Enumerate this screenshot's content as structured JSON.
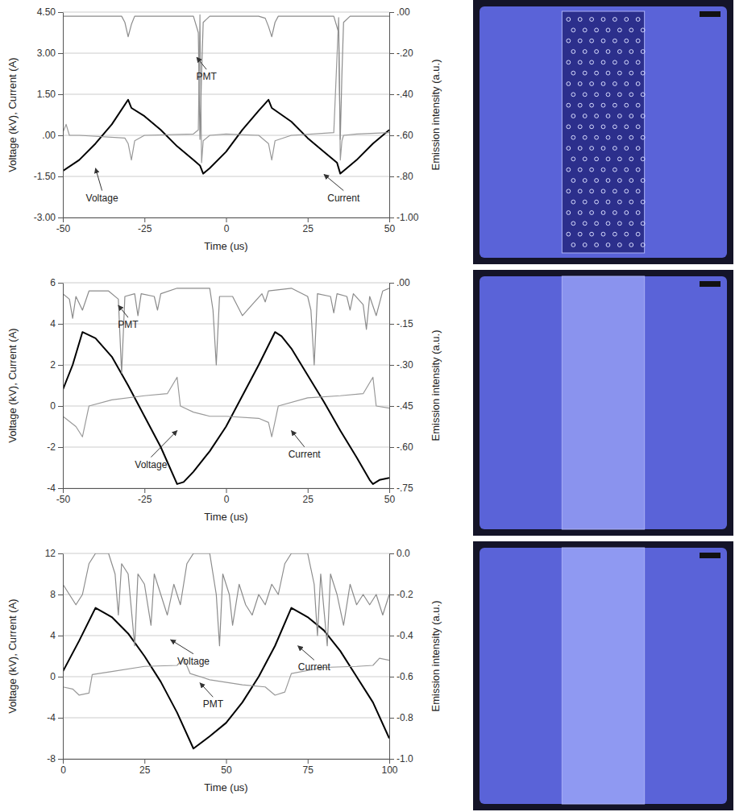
{
  "chart_data": [
    {
      "type": "line",
      "xlabel": "Time (us)",
      "ylabel": "Voltage (kV), Current (A)",
      "y2label": "Emission intensity (a.u.)",
      "xlim": [
        -50,
        50
      ],
      "ylim": [
        -3,
        4.5
      ],
      "y2lim": [
        -1,
        0
      ],
      "xticks": [
        -50,
        -25,
        0,
        25,
        50
      ],
      "yticks": [
        {
          "value": -3,
          "label": "-3.00"
        },
        {
          "value": -1.5,
          "label": "-1.50"
        },
        {
          "value": 0,
          "label": ".00"
        },
        {
          "value": 1.5,
          "label": "1.50"
        },
        {
          "value": 3,
          "label": "3.00"
        },
        {
          "value": 4.5,
          "label": "4.50"
        }
      ],
      "y2ticks": [
        {
          "value": -1,
          "label": "-1.00"
        },
        {
          "value": -0.8,
          "label": "-.80"
        },
        {
          "value": -0.6,
          "label": "-.60"
        },
        {
          "value": -0.4,
          "label": "-.40"
        },
        {
          "value": -0.2,
          "label": "-.20"
        },
        {
          "value": 0,
          "label": ".00"
        }
      ],
      "grid": true,
      "series": [
        {
          "name": "Voltage",
          "color": "#000000",
          "x": [
            -50,
            -45,
            -40,
            -35,
            -30,
            -29,
            -25,
            -20,
            -15,
            -10,
            -8,
            -7,
            -5,
            0,
            5,
            10,
            13,
            14,
            20,
            25,
            30,
            34,
            35,
            37,
            40,
            45,
            50
          ],
          "values": [
            -1.3,
            -0.9,
            -0.3,
            0.4,
            1.3,
            1.0,
            0.7,
            0.2,
            -0.4,
            -0.9,
            -1.1,
            -1.4,
            -1.2,
            -0.6,
            0.2,
            0.9,
            1.3,
            1.0,
            0.5,
            -0.1,
            -0.6,
            -1.0,
            -1.4,
            -1.2,
            -0.9,
            -0.3,
            0.2
          ]
        },
        {
          "name": "Current",
          "color": "#999999",
          "x": [
            -50,
            -49,
            -48,
            -45,
            -31,
            -30,
            -29,
            -28,
            -25,
            -10,
            -8.5,
            -8,
            -7.5,
            -7,
            -5,
            0,
            10,
            13,
            14,
            15,
            20,
            33,
            34.5,
            35,
            35.5,
            36,
            40,
            50
          ],
          "values": [
            0.1,
            0.4,
            0.0,
            0.0,
            -0.1,
            -0.3,
            -0.9,
            -0.2,
            0.0,
            0.05,
            0.2,
            4.4,
            -1.0,
            -0.2,
            0.0,
            0.05,
            0.0,
            -0.3,
            -0.9,
            -0.2,
            0.0,
            0.1,
            4.3,
            -0.9,
            -0.2,
            0.0,
            0.05,
            0.1
          ]
        },
        {
          "name": "PMT",
          "color": "#8c8c8c",
          "axis": "y2",
          "x": [
            -50,
            -32,
            -31,
            -30,
            -29,
            -28,
            -10,
            -8.5,
            -8,
            -7.5,
            -7,
            -5,
            10,
            12,
            13,
            14,
            15,
            16,
            33,
            34.5,
            35,
            35.5,
            36,
            38,
            50
          ],
          "values": [
            -0.02,
            -0.02,
            -0.05,
            -0.12,
            -0.06,
            -0.02,
            -0.02,
            -0.1,
            -0.62,
            -0.3,
            -0.05,
            -0.02,
            -0.02,
            -0.03,
            -0.07,
            -0.12,
            -0.05,
            -0.02,
            -0.02,
            -0.1,
            -0.62,
            -0.3,
            -0.05,
            -0.02,
            -0.02
          ]
        }
      ]
    },
    {
      "type": "line",
      "xlabel": "Time (us)",
      "ylabel": "Voltage (kV), Current (A)",
      "y2label": "Emission intensity (a.u.)",
      "xlim": [
        -50,
        50
      ],
      "ylim": [
        -4,
        6
      ],
      "y2lim": [
        -0.75,
        0
      ],
      "xticks": [
        -50,
        -25,
        0,
        25,
        50
      ],
      "yticks": [
        -4,
        -2,
        0,
        2,
        4,
        6
      ],
      "y2ticks": [
        {
          "value": -0.75,
          "label": "-.75"
        },
        {
          "value": -0.6,
          "label": "-.60"
        },
        {
          "value": -0.45,
          "label": "-.45"
        },
        {
          "value": -0.3,
          "label": "-.30"
        },
        {
          "value": -0.15,
          "label": "-.15"
        },
        {
          "value": 0,
          "label": ".00"
        }
      ],
      "grid": true,
      "series": [
        {
          "name": "Voltage",
          "color": "#000000",
          "x": [
            -50,
            -47,
            -44,
            -40,
            -35,
            -30,
            -25,
            -20,
            -15,
            -13,
            -10,
            -5,
            0,
            5,
            10,
            15,
            17,
            20,
            25,
            30,
            35,
            40,
            44,
            45,
            47,
            50
          ],
          "values": [
            0.8,
            2.0,
            3.6,
            3.3,
            2.4,
            1.0,
            -0.5,
            -2.0,
            -3.8,
            -3.7,
            -3.2,
            -2.2,
            -1.0,
            0.5,
            2.0,
            3.6,
            3.4,
            2.8,
            1.5,
            0.2,
            -1.2,
            -2.5,
            -3.6,
            -3.8,
            -3.6,
            -3.5
          ]
        },
        {
          "name": "Current",
          "color": "#999999",
          "x": [
            -50,
            -46,
            -44,
            -42,
            -35,
            -25,
            -18,
            -15,
            -14,
            -10,
            -5,
            0,
            10,
            13,
            14,
            16,
            25,
            35,
            42,
            45,
            46,
            50
          ],
          "values": [
            -0.5,
            -1.0,
            -1.5,
            0.0,
            0.3,
            0.5,
            0.6,
            1.4,
            0.0,
            -0.3,
            -0.5,
            -0.5,
            -0.6,
            -0.8,
            -1.5,
            0.0,
            0.4,
            0.5,
            0.6,
            1.4,
            0.0,
            -0.1
          ]
        },
        {
          "name": "PMT",
          "color": "#8c8c8c",
          "axis": "y2",
          "x": [
            -50,
            -48,
            -47,
            -46,
            -44,
            -42,
            -36,
            -33,
            -32,
            -31,
            -28,
            -27,
            -26,
            -22,
            -21,
            -20,
            -15,
            -5,
            -4,
            -3,
            -2,
            2,
            5,
            8,
            11,
            12,
            13,
            20,
            25,
            26,
            27,
            28,
            32,
            33,
            34,
            37,
            38,
            39,
            42,
            43,
            44,
            46,
            48,
            50
          ],
          "values": [
            -0.04,
            -0.06,
            -0.13,
            -0.05,
            -0.1,
            -0.03,
            -0.03,
            -0.06,
            -0.33,
            -0.05,
            -0.04,
            -0.12,
            -0.04,
            -0.05,
            -0.1,
            -0.04,
            -0.02,
            -0.02,
            -0.1,
            -0.3,
            -0.05,
            -0.05,
            -0.12,
            -0.08,
            -0.04,
            -0.07,
            -0.03,
            -0.02,
            -0.05,
            -0.1,
            -0.3,
            -0.04,
            -0.05,
            -0.11,
            -0.04,
            -0.05,
            -0.1,
            -0.04,
            -0.08,
            -0.17,
            -0.05,
            -0.12,
            -0.03,
            -0.02
          ]
        }
      ]
    },
    {
      "type": "line",
      "xlabel": "Time (us)",
      "ylabel": "Voltage (kV), Current (A)",
      "y2label": "Emission intensity (a.u.)",
      "xlim": [
        0,
        100
      ],
      "ylim": [
        -8,
        12
      ],
      "y2lim": [
        -1,
        0
      ],
      "xticks": [
        0,
        25,
        50,
        75,
        100
      ],
      "yticks": [
        -8,
        -4,
        0,
        4,
        8,
        12
      ],
      "y2ticks": [
        {
          "value": -1,
          "label": "-1.0"
        },
        {
          "value": -0.8,
          "label": "-0.8"
        },
        {
          "value": -0.6,
          "label": "-0.6"
        },
        {
          "value": -0.4,
          "label": "-0.4"
        },
        {
          "value": -0.2,
          "label": "-0.2"
        },
        {
          "value": 0,
          "label": "0.0"
        }
      ],
      "grid": true,
      "series": [
        {
          "name": "Voltage",
          "color": "#000000",
          "x": [
            0,
            5,
            10,
            15,
            20,
            25,
            30,
            35,
            40,
            45,
            50,
            55,
            60,
            65,
            70,
            75,
            80,
            85,
            90,
            95,
            100
          ],
          "values": [
            0.5,
            3.5,
            6.7,
            5.8,
            4.2,
            2.0,
            -0.5,
            -3.5,
            -7.0,
            -5.8,
            -4.5,
            -2.5,
            0.0,
            3.0,
            6.7,
            5.8,
            4.5,
            2.5,
            0.0,
            -2.5,
            -6.0
          ]
        },
        {
          "name": "Current",
          "color": "#999999",
          "x": [
            0,
            3,
            5,
            8,
            9,
            15,
            25,
            35,
            37,
            39,
            45,
            55,
            62,
            65,
            68,
            70,
            80,
            90,
            95,
            97,
            100
          ],
          "values": [
            -1.0,
            -1.2,
            -1.8,
            -1.6,
            0.2,
            0.5,
            1.0,
            1.1,
            1.8,
            0.3,
            -0.3,
            -0.8,
            -1.0,
            -1.8,
            -1.5,
            0.3,
            0.9,
            1.0,
            1.1,
            1.8,
            1.6
          ]
        },
        {
          "name": "PMT",
          "color": "#8c8c8c",
          "axis": "y2",
          "x": [
            0,
            2,
            4,
            6,
            8,
            10,
            14,
            16,
            17,
            18,
            20,
            22,
            23,
            25,
            27,
            28,
            30,
            32,
            34,
            36,
            38,
            40,
            45,
            47,
            48,
            49,
            51,
            52,
            54,
            56,
            58,
            60,
            62,
            64,
            66,
            68,
            70,
            75,
            77,
            78,
            79,
            81,
            82,
            84,
            86,
            88,
            90,
            92,
            94,
            96,
            98,
            100
          ],
          "values": [
            -0.15,
            -0.2,
            -0.25,
            -0.2,
            -0.05,
            0.0,
            0.0,
            -0.1,
            -0.3,
            -0.05,
            -0.1,
            -0.45,
            -0.1,
            -0.15,
            -0.35,
            -0.1,
            -0.2,
            -0.3,
            -0.15,
            -0.25,
            -0.05,
            0.0,
            0.0,
            -0.2,
            -0.45,
            -0.1,
            -0.2,
            -0.35,
            -0.15,
            -0.25,
            -0.3,
            -0.2,
            -0.25,
            -0.15,
            -0.2,
            -0.05,
            0.0,
            0.0,
            -0.15,
            -0.4,
            -0.1,
            -0.45,
            -0.1,
            -0.2,
            -0.35,
            -0.15,
            -0.25,
            -0.2,
            -0.25,
            -0.2,
            -0.3,
            -0.2
          ]
        }
      ]
    }
  ]
}
